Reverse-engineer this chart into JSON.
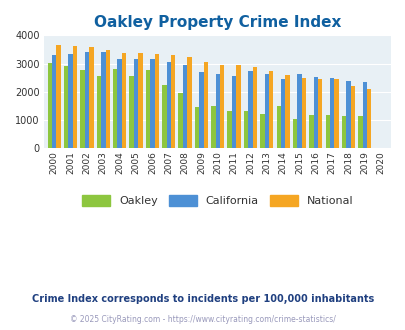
{
  "title": "Oakley Property Crime Index",
  "title_color": "#1060a0",
  "subtitle": "Crime Index corresponds to incidents per 100,000 inhabitants",
  "subtitle_color": "#204080",
  "copyright": "© 2025 CityRating.com - https://www.cityrating.com/crime-statistics/",
  "copyright_color": "#9999bb",
  "years": [
    2000,
    2001,
    2002,
    2003,
    2004,
    2005,
    2006,
    2007,
    2008,
    2009,
    2010,
    2011,
    2012,
    2013,
    2014,
    2015,
    2016,
    2017,
    2018,
    2019,
    2020
  ],
  "oakley": [
    3010,
    2910,
    2780,
    2550,
    2800,
    2550,
    2780,
    2230,
    1950,
    1460,
    1490,
    1340,
    1340,
    1220,
    1490,
    1040,
    1190,
    1190,
    1160,
    1160,
    0
  ],
  "california": [
    3310,
    3340,
    3420,
    3420,
    3180,
    3150,
    3170,
    3050,
    2960,
    2720,
    2620,
    2560,
    2740,
    2630,
    2450,
    2620,
    2530,
    2490,
    2380,
    2360,
    0
  ],
  "national": [
    3650,
    3620,
    3600,
    3490,
    3390,
    3380,
    3340,
    3300,
    3220,
    3040,
    2960,
    2940,
    2880,
    2730,
    2610,
    2500,
    2460,
    2450,
    2200,
    2110,
    0
  ],
  "oakley_color": "#8dc63f",
  "california_color": "#4d90d5",
  "national_color": "#f5a623",
  "plot_bg_color": "#e8f0f5",
  "ylim": [
    0,
    4000
  ],
  "yticks": [
    0,
    1000,
    2000,
    3000,
    4000
  ],
  "legend_labels": [
    "Oakley",
    "California",
    "National"
  ],
  "bar_width": 0.27
}
